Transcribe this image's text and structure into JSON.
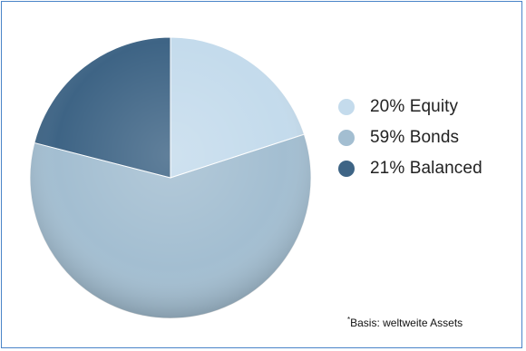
{
  "chart_data": {
    "type": "pie",
    "slices": [
      {
        "label": "20% Equity",
        "value": 20,
        "color": "#c4dbec"
      },
      {
        "label": "59% Bonds",
        "value": 59,
        "color": "#a3bed1"
      },
      {
        "label": "21% Balanced",
        "value": 21,
        "color": "#3e6485"
      }
    ],
    "start_angle_deg": 0,
    "direction": "clockwise",
    "legend_position": "right",
    "footnote_marker": "*",
    "footnote": "Basis: weltweite Assets"
  },
  "colors": {
    "frame_border": "#4a84c8",
    "background": "#ffffff"
  }
}
